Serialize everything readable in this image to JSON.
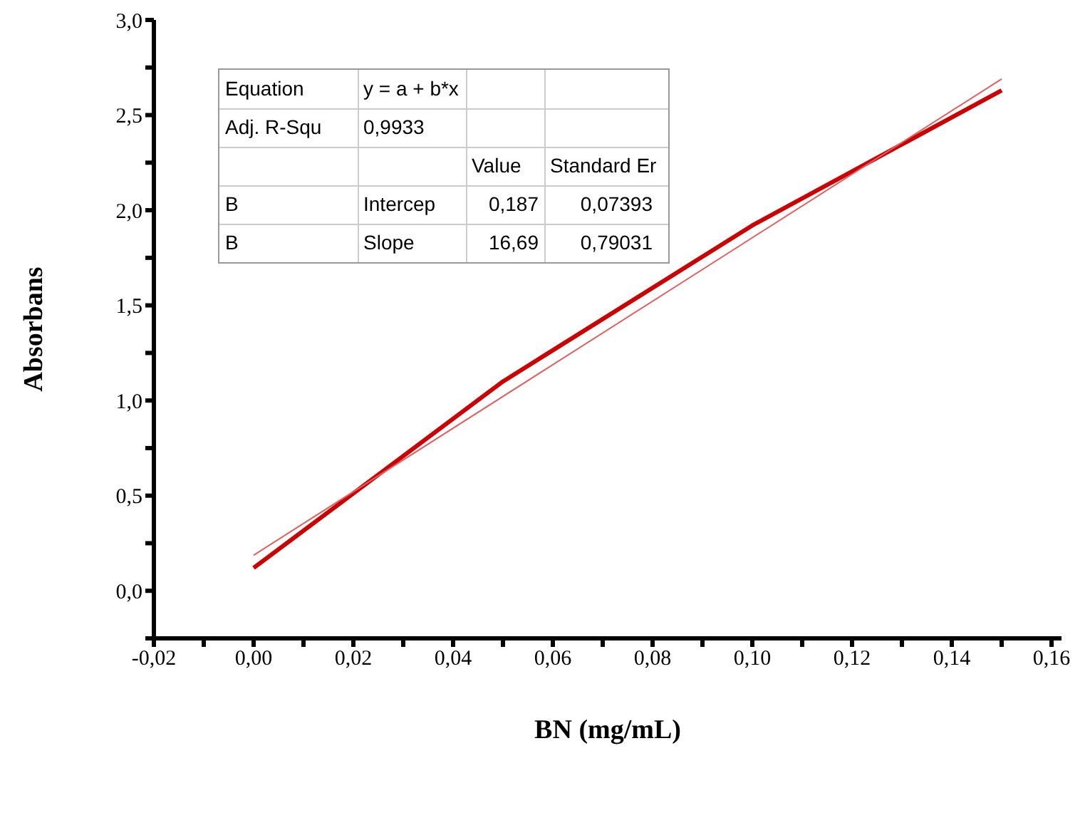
{
  "chart_data": {
    "type": "line",
    "xlabel": "BN (mg/mL)",
    "ylabel": "Absorbans",
    "series": [
      {
        "x": [
          0,
          0.05,
          0.1,
          0.15
        ],
        "values": [
          0.12,
          1.1,
          1.92,
          2.63
        ],
        "color": "#cc0000"
      },
      {
        "type": "line",
        "x": [
          0,
          0.15
        ],
        "values": [
          0.187,
          2.69
        ],
        "color": "#e06060"
      }
    ],
    "xlim": [
      -0.02,
      0.162
    ],
    "xticks": [
      {
        "value": -0.02,
        "label": "-0,02"
      },
      {
        "value": -0.01,
        "label": null
      },
      {
        "value": 0,
        "label": "0,00"
      },
      {
        "value": 0.01,
        "label": null
      },
      {
        "value": 0.02,
        "label": "0,02"
      },
      {
        "value": 0.03,
        "label": null
      },
      {
        "value": 0.04,
        "label": "0,04"
      },
      {
        "value": 0.05,
        "label": null
      },
      {
        "value": 0.06,
        "label": "0,06"
      },
      {
        "value": 0.07,
        "label": null
      },
      {
        "value": 0.08,
        "label": "0,08"
      },
      {
        "value": 0.09,
        "label": null
      },
      {
        "value": 0.1,
        "label": "0,10"
      },
      {
        "value": 0.11,
        "label": null
      },
      {
        "value": 0.12,
        "label": "0,12"
      },
      {
        "value": 0.13,
        "label": null
      },
      {
        "value": 0.14,
        "label": "0,14"
      },
      {
        "value": 0.15,
        "label": null
      },
      {
        "value": 0.16,
        "label": "0,16"
      }
    ],
    "ylim": [
      -0.25,
      3.0
    ],
    "yticks": [
      {
        "value": -0.25,
        "label": null
      },
      {
        "value": 0,
        "label": "0,0"
      },
      {
        "value": 0.25,
        "label": null
      },
      {
        "value": 0.5,
        "label": "0,5"
      },
      {
        "value": 0.75,
        "label": null
      },
      {
        "value": 1,
        "label": "1,0"
      },
      {
        "value": 1.25,
        "label": null
      },
      {
        "value": 1.5,
        "label": "1,5"
      },
      {
        "value": 1.75,
        "label": null
      },
      {
        "value": 2,
        "label": "2,0"
      },
      {
        "value": 2.25,
        "label": null
      },
      {
        "value": 2.5,
        "label": "2,5"
      },
      {
        "value": 2.75,
        "label": null
      },
      {
        "value": 3,
        "label": "3,0"
      }
    ],
    "marker": "none",
    "line_style": "solid",
    "annotations": [
      "Equation",
      "y = a + b*x",
      "Adj. R-Squ",
      "0,9933",
      "Value",
      "Standard Er",
      "B",
      "Intercep",
      "0,187",
      "0,07393",
      "B",
      "Slope",
      "16,69",
      "0,79031"
    ]
  }
}
